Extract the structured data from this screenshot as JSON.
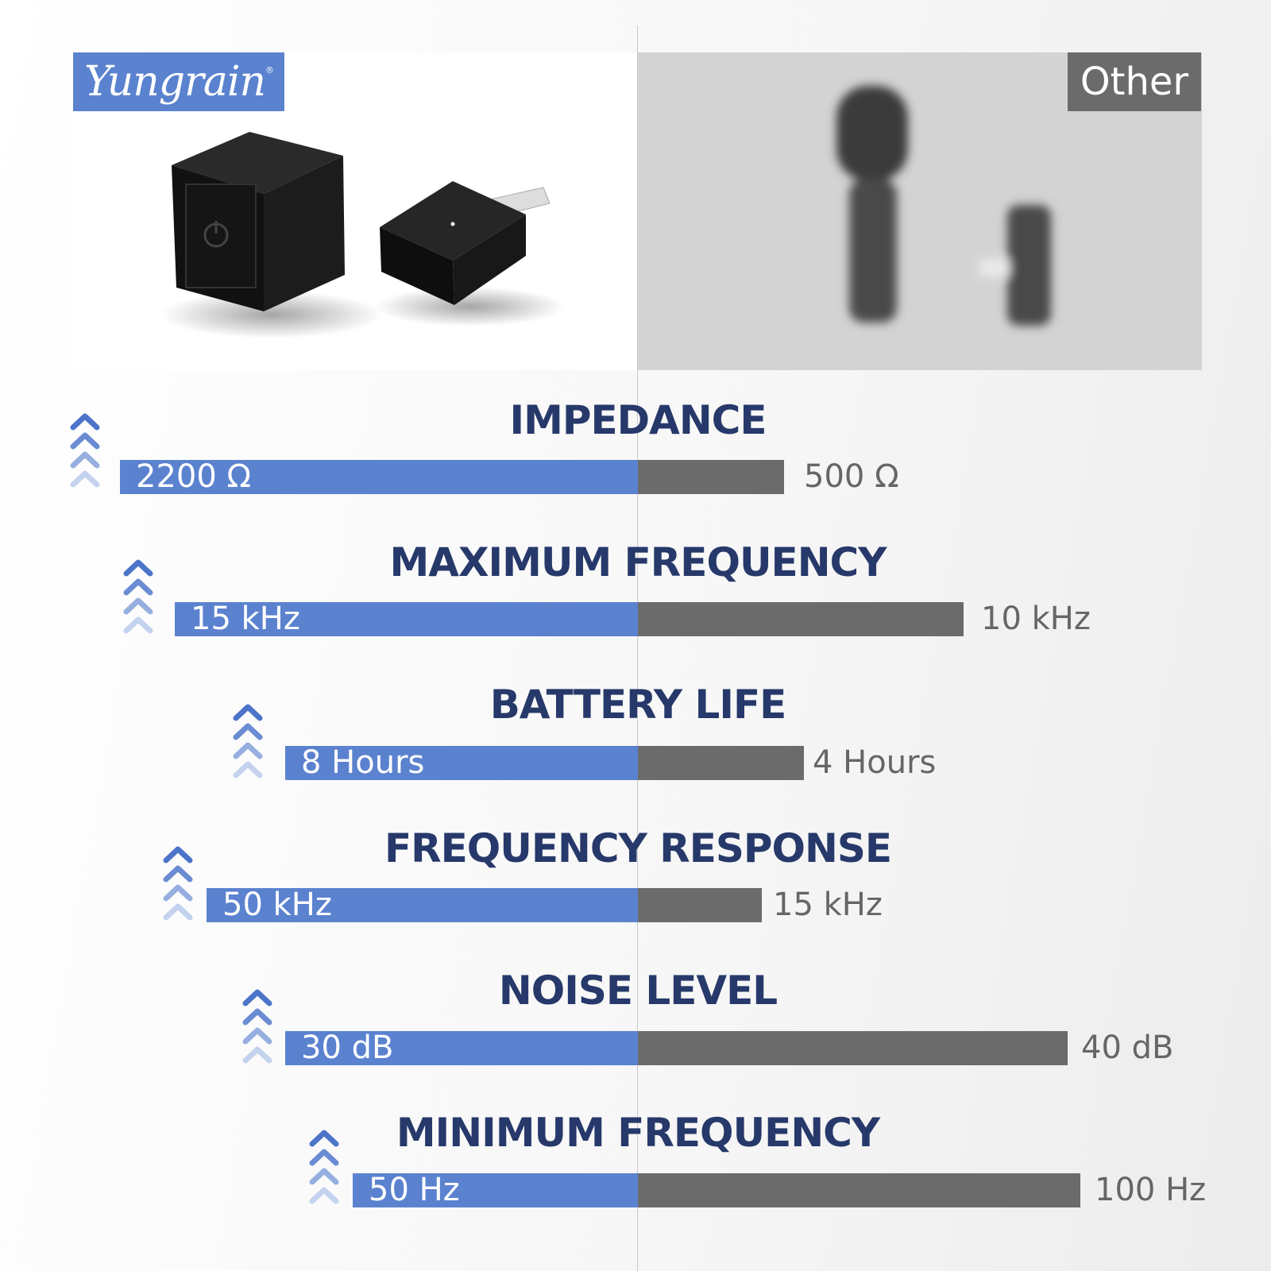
{
  "brand": {
    "logo_text": "Yungrain",
    "registered_mark": "®",
    "competitor_label": "Other"
  },
  "colors": {
    "brand_blue": "#5b82cf",
    "competitor_grey": "#6b6b6b",
    "title_navy": "#27396a"
  },
  "rows": [
    {
      "title": "IMPEDANCE",
      "yungrain": "2200 Ω",
      "other": "500 Ω"
    },
    {
      "title": "MAXIMUM FREQUENCY",
      "yungrain": "15 kHz",
      "other": "10 kHz"
    },
    {
      "title": "BATTERY LIFE",
      "yungrain": "8 Hours",
      "other": "4 Hours"
    },
    {
      "title": "FREQUENCY RESPONSE",
      "yungrain": "50 kHz",
      "other": "15 kHz"
    },
    {
      "title": "NOISE LEVEL",
      "yungrain": "30 dB",
      "other": "40 dB"
    },
    {
      "title": "MINIMUM FREQUENCY",
      "yungrain": "50 Hz",
      "other": "100 Hz"
    }
  ],
  "icons": {
    "row_marker": "chevrons-up-icon"
  }
}
